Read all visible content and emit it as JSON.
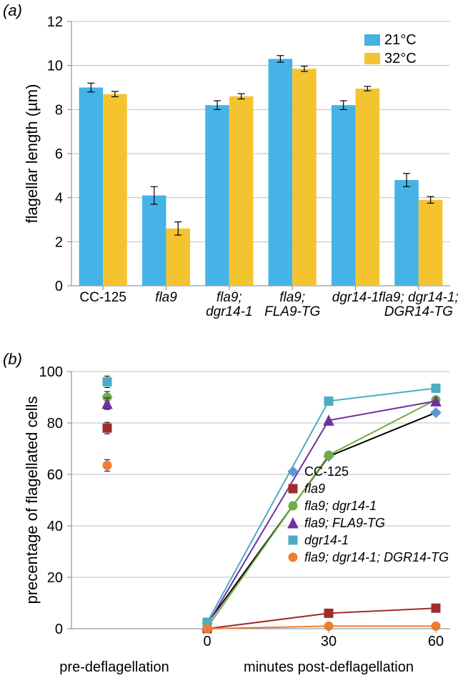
{
  "panel_a": {
    "label": "(a)",
    "type": "bar",
    "ylabel": "flagellar length (µm)",
    "ylim": [
      0,
      12
    ],
    "ytick_step": 2,
    "categories": [
      "CC-125",
      "fla9",
      "fla9; dgr14-1",
      "fla9; FLA9-TG",
      "dgr14-1",
      "fla9; dgr14-1; DGR14-TG"
    ],
    "series": [
      {
        "name": "21°C",
        "color": "#46b3e6",
        "values": [
          9.0,
          4.1,
          8.2,
          10.3,
          8.2,
          4.8
        ],
        "errors": [
          0.2,
          0.4,
          0.2,
          0.15,
          0.2,
          0.3
        ]
      },
      {
        "name": "32°C",
        "color": "#f4c430",
        "values": [
          8.7,
          2.6,
          8.6,
          9.85,
          8.95,
          3.9
        ],
        "errors": [
          0.12,
          0.3,
          0.12,
          0.12,
          0.1,
          0.15
        ]
      }
    ],
    "bar_width": 0.38,
    "axis_color": "#808080",
    "grid_color": "#bfbfbf",
    "background_color": "#ffffff",
    "label_fontsize": 22,
    "tick_fontsize": 20
  },
  "panel_b": {
    "label": "(b)",
    "type": "line",
    "ylabel": "precentage of flagellated cells",
    "xlabel_left": "pre-deflagellation",
    "xlabel_right": "minutes post-deflagellation",
    "ylim": [
      0,
      100
    ],
    "ytick_step": 20,
    "x_pre": -1,
    "x_values": [
      0,
      30,
      60
    ],
    "series": [
      {
        "name": "CC-125",
        "marker": "diamond",
        "color": "#5b9bd5",
        "line": "#000000",
        "pre": 90,
        "values": [
          2.0,
          67,
          84
        ]
      },
      {
        "name": "fla9",
        "marker": "square",
        "color": "#a02c2c",
        "line": "#a02c2c",
        "pre": 78,
        "values": [
          0,
          6,
          8
        ]
      },
      {
        "name": "fla9; dgr14-1",
        "marker": "circle",
        "color": "#70ad47",
        "line": "#70ad47",
        "pre": 90,
        "values": [
          0.5,
          67.5,
          89
        ]
      },
      {
        "name": "fla9; FLA9-TG",
        "marker": "triangle",
        "color": "#7030a0",
        "line": "#7030a0",
        "pre": 87.5,
        "values": [
          1.5,
          81,
          88.5
        ]
      },
      {
        "name": "dgr14-1",
        "marker": "square",
        "color": "#4bacc6",
        "line": "#4bacc6",
        "pre": 96,
        "values": [
          2.5,
          88.5,
          93.5
        ]
      },
      {
        "name": "fla9; dgr14-1; DGR14-TG",
        "marker": "circle",
        "color": "#ed7d31",
        "line": "#ed7d31",
        "pre": 63.5,
        "values": [
          0,
          1,
          1
        ]
      }
    ],
    "axis_color": "#808080",
    "grid_color": "#bfbfbf",
    "background_color": "#ffffff",
    "label_fontsize": 22,
    "tick_fontsize": 20
  }
}
